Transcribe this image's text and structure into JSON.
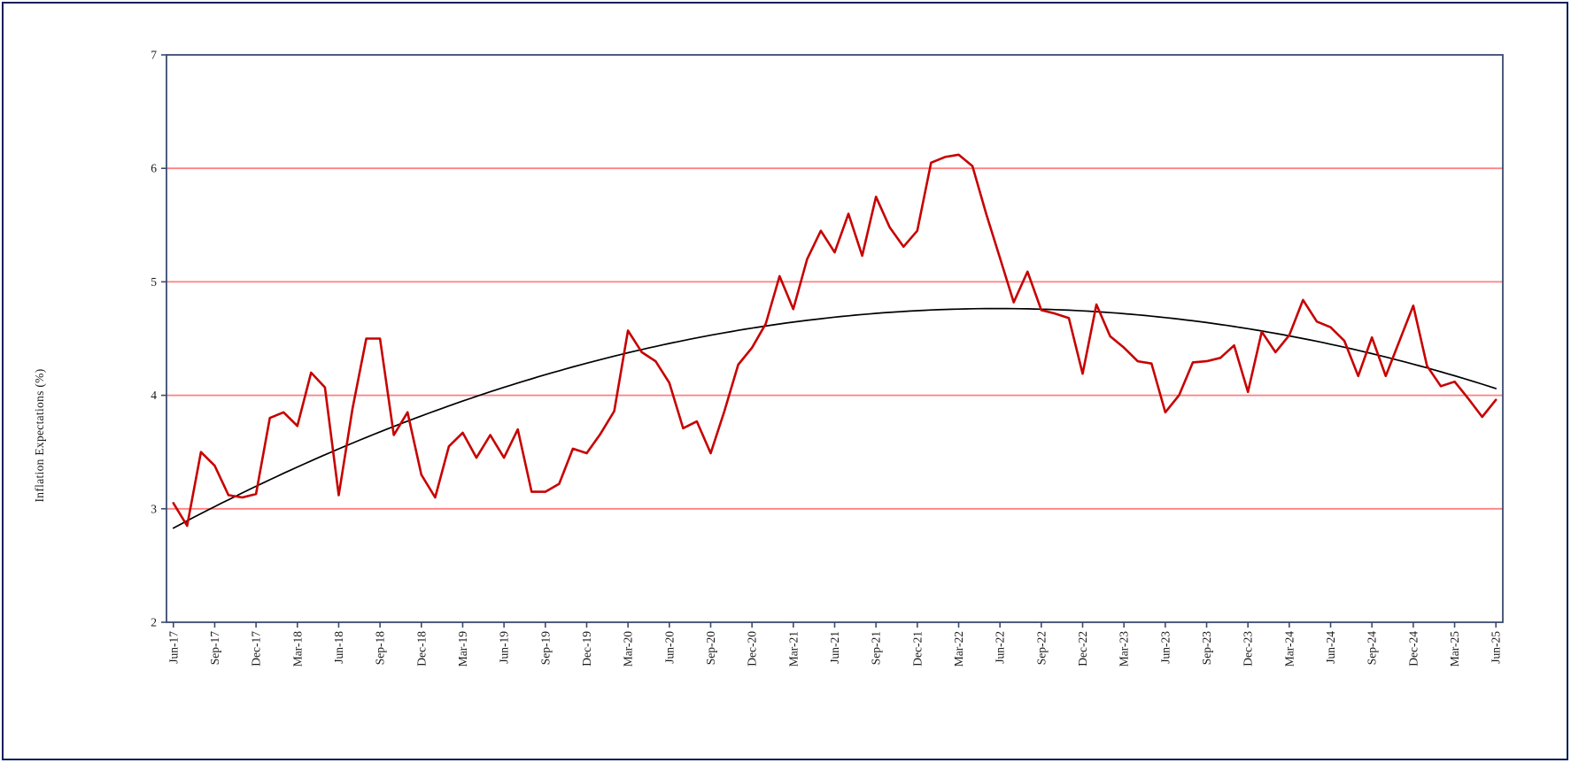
{
  "window": {
    "background_color": "#ffffff",
    "outer_border_color": "#0a1f5c",
    "plot_border_color": "#3a4a6e"
  },
  "chart_data": {
    "type": "line",
    "title": "",
    "xlabel": "",
    "ylabel": "Inflation Expectations (%)",
    "ylim": [
      2,
      7
    ],
    "y_tick_labels": [
      "2",
      "3",
      "4",
      "5",
      "6",
      "7"
    ],
    "gridlines_at": [
      3,
      4,
      5,
      6
    ],
    "gridline_color": "#ff8080",
    "grid": "horizontal-only",
    "legend_position": "none",
    "x_cadence": "monthly",
    "x_start": "Jun-17",
    "x_end": "Jun-25",
    "x_tick_every_months": 3,
    "x_tick_labels": [
      "Jun-17",
      "Sep-17",
      "Dec-17",
      "Mar-18",
      "Jun-18",
      "Sep-18",
      "Dec-18",
      "Mar-19",
      "Jun-19",
      "Sep-19",
      "Dec-19",
      "Mar-20",
      "Jun-20",
      "Sep-20",
      "Dec-20",
      "Mar-21",
      "Jun-21",
      "Sep-21",
      "Dec-21",
      "Mar-22",
      "Jun-22",
      "Sep-22",
      "Dec-22",
      "Mar-23",
      "Jun-23",
      "Sep-23",
      "Dec-23",
      "Mar-24",
      "Jun-24",
      "Sep-24",
      "Dec-24",
      "Mar-25",
      "Jun-25"
    ],
    "series": [
      {
        "name": "inflation-expectations",
        "color": "#c80000",
        "line_width": 2.6,
        "values": [
          3.05,
          2.85,
          3.5,
          3.38,
          3.12,
          3.1,
          3.13,
          3.8,
          3.85,
          3.73,
          4.2,
          4.07,
          3.12,
          3.88,
          4.5,
          4.5,
          3.65,
          3.85,
          3.3,
          3.1,
          3.55,
          3.67,
          3.45,
          3.65,
          3.45,
          3.7,
          3.15,
          3.15,
          3.22,
          3.53,
          3.49,
          3.66,
          3.86,
          4.57,
          4.38,
          4.3,
          4.11,
          3.71,
          3.77,
          3.49,
          3.86,
          4.27,
          4.42,
          4.63,
          5.05,
          4.76,
          5.2,
          5.45,
          5.26,
          5.6,
          5.23,
          5.75,
          5.48,
          5.31,
          5.45,
          6.05,
          6.1,
          6.12,
          6.02,
          5.6,
          5.21,
          4.82,
          5.09,
          4.75,
          4.72,
          4.68,
          4.19,
          4.8,
          4.52,
          4.42,
          4.3,
          4.28,
          3.85,
          4.0,
          4.29,
          4.3,
          4.33,
          4.44,
          4.03,
          4.56,
          4.38,
          4.53,
          4.84,
          4.65,
          4.6,
          4.48,
          4.17,
          4.51,
          4.17,
          4.48,
          4.79,
          4.26,
          4.08,
          4.12,
          3.97,
          3.81,
          3.96
        ]
      }
    ],
    "trend": {
      "name": "polynomial-trend",
      "color": "#000000",
      "line_width": 1.7,
      "coefficients": {
        "a": 2.83,
        "b": 0.064623,
        "c": -0.0005397
      },
      "domain_months": [
        0,
        96
      ],
      "start_value": 2.83,
      "peak_value": 4.76,
      "end_value": 4.06
    }
  }
}
